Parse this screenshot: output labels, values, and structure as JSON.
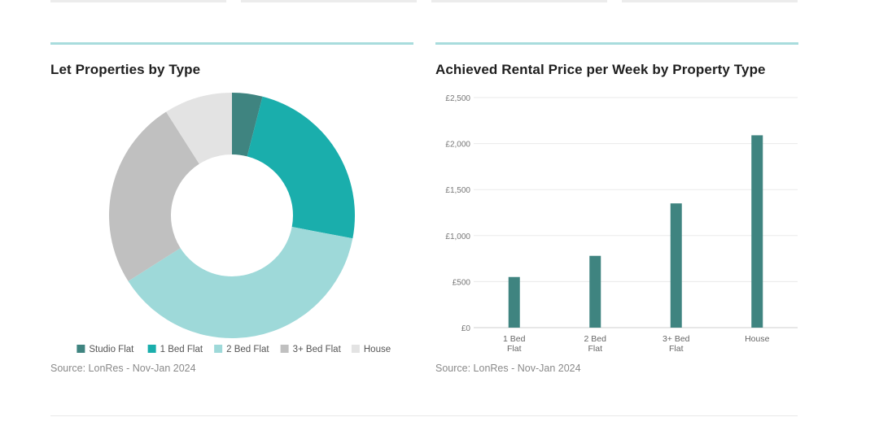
{
  "panels": {
    "left": {
      "title": "Let Properties by Type",
      "source": "Source: LonRes - Nov-Jan 2024"
    },
    "right": {
      "title": "Achieved Rental Price per Week by Property Type",
      "source": "Source: LonRes - Nov-Jan 2024"
    }
  },
  "chart_data": [
    {
      "type": "pie",
      "title": "Let Properties by Type",
      "donut": true,
      "legend_position": "bottom",
      "categories": [
        "Studio Flat",
        "1 Bed Flat",
        "2 Bed Flat",
        "3+ Bed Flat",
        "House"
      ],
      "values": [
        4,
        24,
        38,
        25,
        9
      ],
      "colors": [
        "#3f8480",
        "#1aaeac",
        "#9ed9d9",
        "#c0c0c0",
        "#e3e3e3"
      ]
    },
    {
      "type": "bar",
      "title": "Achieved Rental Price per Week by Property Type",
      "categories": [
        [
          "1 Bed",
          "Flat"
        ],
        [
          "2 Bed",
          "Flat"
        ],
        [
          "3+ Bed",
          "Flat"
        ],
        [
          "House"
        ]
      ],
      "values": [
        550,
        780,
        1350,
        2090
      ],
      "ylim": [
        0,
        2500
      ],
      "yticks": [
        0,
        500,
        1000,
        1500,
        2000,
        2500
      ],
      "ytick_labels": [
        "£0",
        "£500",
        "£1,000",
        "£1,500",
        "£2,000",
        "£2,500"
      ],
      "grid": true,
      "bar_color": "#3f8480"
    }
  ]
}
